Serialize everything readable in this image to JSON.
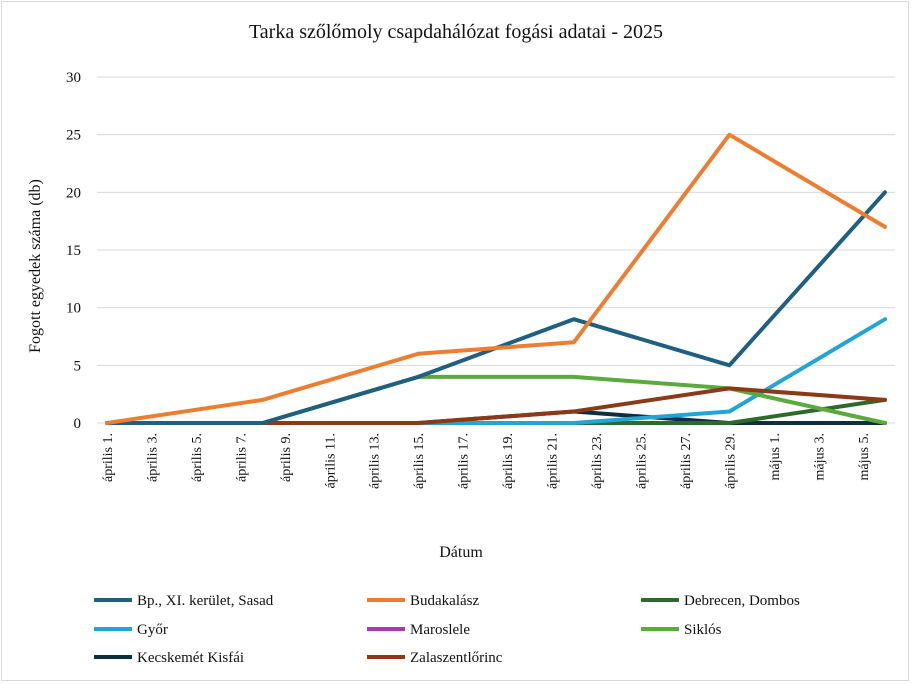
{
  "chart_data": {
    "type": "line",
    "title": "Tarka szőlőmoly csapdahálózat fogási adatai - 2025",
    "xlabel": "Dátum",
    "ylabel": "Fogott egyedek száma (db)",
    "ylim": [
      0,
      30
    ],
    "yticks": [
      "0",
      "5",
      "10",
      "15",
      "20",
      "25",
      "30"
    ],
    "grid": true,
    "legend_position": "bottom",
    "x": [
      "április 1.",
      "április 3.",
      "április 5.",
      "április 7.",
      "április 9.",
      "április 11.",
      "április 13.",
      "április 15.",
      "április 17.",
      "április 19.",
      "április 21.",
      "április 23.",
      "április 25.",
      "április 27.",
      "április 29.",
      "május 1.",
      "május 3.",
      "május 5."
    ],
    "series": [
      {
        "name": "Bp., XI. kerület, Sasad",
        "color": "#1f5f7f",
        "points": [
          [
            "április 1.",
            0
          ],
          [
            "április 8.",
            0
          ],
          [
            "április 15.",
            4
          ],
          [
            "április 22.",
            9
          ],
          [
            "április 29.",
            5
          ],
          [
            "május 6.",
            20
          ]
        ]
      },
      {
        "name": "Budakalász",
        "color": "#ed7d31",
        "points": [
          [
            "április 1.",
            0
          ],
          [
            "április 8.",
            2
          ],
          [
            "április 15.",
            6
          ],
          [
            "április 22.",
            7
          ],
          [
            "április 29.",
            25
          ],
          [
            "május 6.",
            17
          ]
        ]
      },
      {
        "name": "Debrecen, Dombos",
        "color": "#2e6b2a",
        "points": [
          [
            "április 1.",
            0
          ],
          [
            "április 8.",
            0
          ],
          [
            "április 15.",
            0
          ],
          [
            "április 22.",
            0
          ],
          [
            "április 29.",
            0
          ],
          [
            "május 6.",
            2
          ]
        ]
      },
      {
        "name": "Győr",
        "color": "#22a5d6",
        "points": [
          [
            "április 1.",
            0
          ],
          [
            "április 8.",
            0
          ],
          [
            "április 15.",
            0
          ],
          [
            "április 22.",
            0
          ],
          [
            "április 29.",
            1
          ],
          [
            "május 6.",
            9
          ]
        ]
      },
      {
        "name": "Maroslele",
        "color": "#a23ea8",
        "points": [
          [
            "április 1.",
            0
          ],
          [
            "április 8.",
            0
          ],
          [
            "április 15.",
            0
          ],
          [
            "április 22.",
            0
          ],
          [
            "április 29.",
            0
          ],
          [
            "május 6.",
            0
          ]
        ]
      },
      {
        "name": "Siklós",
        "color": "#5aaa3c",
        "points": [
          [
            "április 1.",
            0
          ],
          [
            "április 8.",
            0
          ],
          [
            "április 15.",
            4
          ],
          [
            "április 22.",
            4
          ],
          [
            "április 29.",
            3
          ],
          [
            "május 6.",
            0
          ]
        ]
      },
      {
        "name": "Kecskemét Kisfái",
        "color": "#0d2f3f",
        "points": [
          [
            "április 1.",
            0
          ],
          [
            "április 8.",
            0
          ],
          [
            "április 15.",
            0
          ],
          [
            "április 22.",
            1
          ],
          [
            "április 29.",
            0
          ],
          [
            "május 6.",
            0
          ]
        ]
      },
      {
        "name": "Zalaszentlőrinc",
        "color": "#8a3a17",
        "points": [
          [
            "április 1.",
            0
          ],
          [
            "április 8.",
            0
          ],
          [
            "április 15.",
            0
          ],
          [
            "április 22.",
            1
          ],
          [
            "április 29.",
            3
          ],
          [
            "május 6.",
            2
          ]
        ]
      }
    ]
  }
}
